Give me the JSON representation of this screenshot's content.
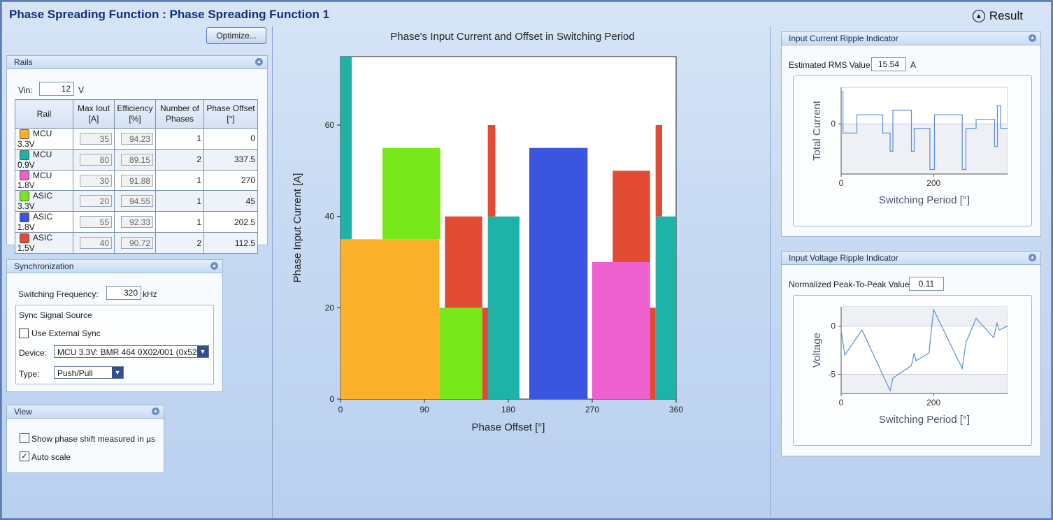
{
  "header": {
    "title": "Phase Spreading Function : Phase Spreading Function 1",
    "result_label": "Result"
  },
  "optimize_label": "Optimize...",
  "rails": {
    "title": "Rails",
    "vin_label": "Vin:",
    "vin_value": "12",
    "vin_unit": "V",
    "columns": [
      "Rail",
      "Max Iout [A]",
      "Efficiency [%]",
      "Number of Phases",
      "Phase Offset [°]"
    ],
    "rows": [
      {
        "color": "#fbb22a",
        "name": "MCU 3.3V",
        "max_iout": "35",
        "efficiency": "94.23",
        "phases": "1",
        "offset": "0"
      },
      {
        "color": "#1fb3a8",
        "name": "MCU 0.9V",
        "max_iout": "80",
        "efficiency": "89.15",
        "phases": "2",
        "offset": "337.5"
      },
      {
        "color": "#ee5fcf",
        "name": "MCU 1.8V",
        "max_iout": "30",
        "efficiency": "91.88",
        "phases": "1",
        "offset": "270"
      },
      {
        "color": "#78e81c",
        "name": "ASIC 3.3V",
        "max_iout": "20",
        "efficiency": "94.55",
        "phases": "1",
        "offset": "45"
      },
      {
        "color": "#3a56e0",
        "name": "ASIC 1.8V",
        "max_iout": "55",
        "efficiency": "92.33",
        "phases": "1",
        "offset": "202.5"
      },
      {
        "color": "#e24a33",
        "name": "ASIC 1.5V",
        "max_iout": "40",
        "efficiency": "90.72",
        "phases": "2",
        "offset": "112.5"
      }
    ]
  },
  "sync": {
    "title": "Synchronization",
    "freq_label": "Switching Frequency:",
    "freq_value": "320",
    "freq_unit": "kHz",
    "source_label": "Sync Signal Source",
    "external_label": "Use External Sync",
    "device_label": "Device:",
    "device_value": "MCU 3.3V: BMR 464 0X02/001 (0x52)",
    "type_label": "Type:",
    "type_value": "Push/Pull"
  },
  "view": {
    "title": "View",
    "show_us_label": "Show phase shift measured in µs",
    "auto_scale_label": "Auto scale",
    "auto_scale_checked": true
  },
  "chart_data": [
    {
      "type": "bar",
      "title": "Phase's Input Current and Offset in Switching Period",
      "xlabel": "Phase Offset [°]",
      "ylabel": "Phase Input Current [A]",
      "xlim": [
        0,
        360
      ],
      "ylim": [
        0,
        75
      ],
      "xticks": [
        "0",
        "90",
        "180",
        "270",
        "360"
      ],
      "yticks": [
        "0",
        "20",
        "40",
        "60"
      ],
      "bars": [
        {
          "series": "MCU 3.3V",
          "color": "#fbb22a",
          "x0": 0,
          "x1": 106,
          "y0": 0,
          "y1": 35
        },
        {
          "series": "MCU 0.9V",
          "color": "#1fb3a8",
          "x0": 0,
          "x1": 12,
          "y0": 35,
          "y1": 75
        },
        {
          "series": "ASIC 3.3V",
          "color": "#78e81c",
          "x0": 45,
          "x1": 107,
          "y0": 35,
          "y1": 55
        },
        {
          "series": "ASIC 3.3V",
          "color": "#78e81c",
          "x0": 106,
          "x1": 152,
          "y0": 0,
          "y1": 20
        },
        {
          "series": "ASIC 1.5V",
          "color": "#e24a33",
          "x0": 112,
          "x1": 152,
          "y0": 20,
          "y1": 40
        },
        {
          "series": "ASIC 1.5V",
          "color": "#e24a33",
          "x0": 152,
          "x1": 159,
          "y0": 0,
          "y1": 20
        },
        {
          "series": "ASIC 1.5V",
          "color": "#e24a33",
          "x0": 158,
          "x1": 166,
          "y0": 40,
          "y1": 60
        },
        {
          "series": "MCU 0.9V",
          "color": "#1fb3a8",
          "x0": 158,
          "x1": 192,
          "y0": 0,
          "y1": 40
        },
        {
          "series": "ASIC 1.8V",
          "color": "#3a56e0",
          "x0": 202.5,
          "x1": 265,
          "y0": 0,
          "y1": 55
        },
        {
          "series": "MCU 1.8V",
          "color": "#ee5fcf",
          "x0": 270,
          "x1": 332,
          "y0": 0,
          "y1": 30
        },
        {
          "series": "ASIC 1.5V",
          "color": "#e24a33",
          "x0": 292,
          "x1": 332,
          "y0": 30,
          "y1": 50
        },
        {
          "series": "ASIC 1.5V",
          "color": "#e24a33",
          "x0": 332,
          "x1": 338,
          "y0": 0,
          "y1": 20
        },
        {
          "series": "ASIC 1.5V",
          "color": "#e24a33",
          "x0": 338,
          "x1": 345,
          "y0": 40,
          "y1": 60
        },
        {
          "series": "MCU 0.9V",
          "color": "#1fb3a8",
          "x0": 338,
          "x1": 360,
          "y0": 0,
          "y1": 40
        }
      ]
    },
    {
      "type": "line",
      "title": "",
      "xlabel": "Switching Period [°]",
      "ylabel": "Total Current",
      "xlim": [
        0,
        360
      ],
      "ylim": [
        -11,
        8
      ],
      "xticks": [
        "0",
        "200"
      ],
      "yticks": [
        "0"
      ],
      "x": [
        0,
        4,
        4,
        34,
        34,
        90,
        90,
        106,
        106,
        112,
        112,
        152,
        152,
        158,
        158,
        192,
        192,
        202,
        202,
        262,
        262,
        270,
        270,
        292,
        292,
        332,
        332,
        338,
        338,
        345,
        345,
        360
      ],
      "y": [
        7,
        7,
        -2,
        -2,
        2,
        2,
        -2,
        -2,
        -6,
        -6,
        3,
        3,
        -6,
        -6,
        -1,
        -1,
        -10,
        -10,
        2,
        2,
        -10,
        -10,
        -1,
        -1,
        1,
        1,
        -5,
        -5,
        4,
        4,
        -1,
        -1
      ]
    },
    {
      "type": "line",
      "title": "",
      "xlabel": "Switching Period [°]",
      "ylabel": "Voltage",
      "xlim": [
        0,
        360
      ],
      "ylim": [
        -7,
        2
      ],
      "xticks": [
        "0",
        "200"
      ],
      "yticks": [
        "0",
        "-5"
      ],
      "x": [
        0,
        8,
        45,
        106,
        112,
        152,
        158,
        162,
        190,
        200,
        262,
        270,
        292,
        330,
        337,
        342,
        360
      ],
      "y": [
        -0.5,
        -3,
        -0.4,
        -6.7,
        -5.4,
        -4.1,
        -2.8,
        -3.6,
        -2.8,
        1.7,
        -4.4,
        -1.7,
        0.8,
        -1.2,
        0.3,
        -0.4,
        0
      ]
    }
  ],
  "ripple_current": {
    "title": "Input Current Ripple Indicator",
    "rms_label": "Estimated RMS Value",
    "rms_value": "15.54",
    "rms_unit": "A"
  },
  "ripple_voltage": {
    "title": "Input Voltage Ripple Indicator",
    "p2p_label": "Normalized Peak-To-Peak Value",
    "p2p_value": "0.11"
  }
}
